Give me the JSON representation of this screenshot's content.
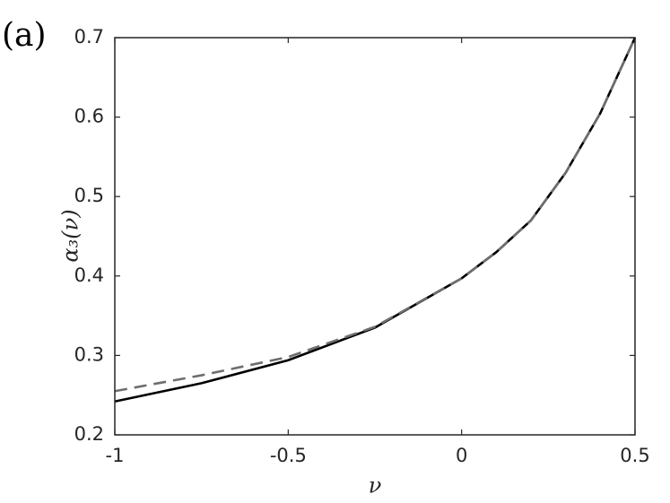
{
  "chart_data": {
    "type": "line",
    "panel_label": "(a)",
    "x_label": "ν",
    "y_label": "α₃(ν)",
    "x": [
      -1,
      -0.75,
      -0.5,
      -0.25,
      0,
      0.1,
      0.2,
      0.3,
      0.4,
      0.5
    ],
    "series": [
      {
        "color": "#000000",
        "dash": "solid",
        "values": [
          0.242,
          0.265,
          0.294,
          0.335,
          0.397,
          0.43,
          0.47,
          0.53,
          0.605,
          0.7
        ]
      },
      {
        "color": "#6e6e6e",
        "dash": "dashed",
        "values": [
          0.255,
          0.275,
          0.298,
          0.336,
          0.397,
          0.43,
          0.47,
          0.53,
          0.605,
          0.7
        ]
      }
    ],
    "xlim": [
      -1,
      0.5
    ],
    "xticks": [
      -1,
      -0.5,
      0,
      0.5
    ],
    "ylim": [
      0.2,
      0.7
    ],
    "yticks": [
      0.2,
      0.3,
      0.4,
      0.5,
      0.6,
      0.7
    ]
  }
}
